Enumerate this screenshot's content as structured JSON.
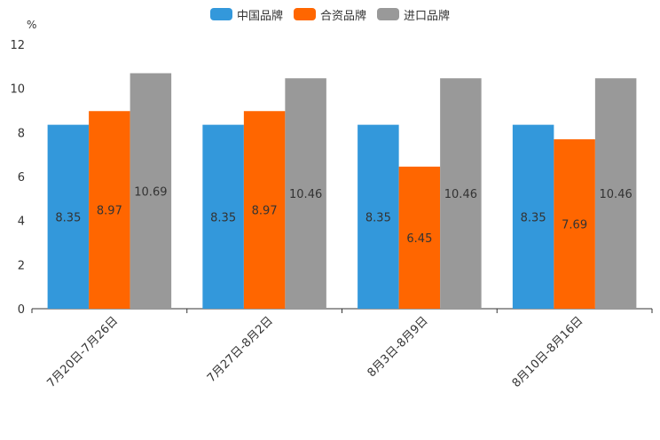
{
  "chart_data": {
    "type": "bar",
    "unit": "%",
    "categories": [
      "7月20日-7月26日",
      "7月27日-8月2日",
      "8月3日-8月9日",
      "8月10日-8月16日"
    ],
    "series": [
      {
        "name": "中国品牌",
        "color": "#3398DB",
        "values": [
          8.35,
          8.35,
          8.35,
          8.35
        ],
        "labels": [
          "8.35",
          "8.35",
          "8.35",
          "8.35"
        ]
      },
      {
        "name": "合资品牌",
        "color": "#FF6600",
        "values": [
          8.97,
          8.97,
          6.45,
          7.69
        ],
        "labels": [
          "8.97",
          "8.97",
          "6.45",
          "7.69"
        ]
      },
      {
        "name": "进口品牌",
        "color": "#999999",
        "values": [
          10.69,
          10.46,
          10.46,
          10.46
        ],
        "labels": [
          "10.69",
          "10.46",
          "10.46",
          "10.46"
        ]
      }
    ],
    "yticks": [
      "0",
      "2",
      "4",
      "6",
      "8",
      "10",
      "12"
    ],
    "ylim": [
      0,
      12
    ],
    "legend_position": "top-center",
    "grid": false
  }
}
